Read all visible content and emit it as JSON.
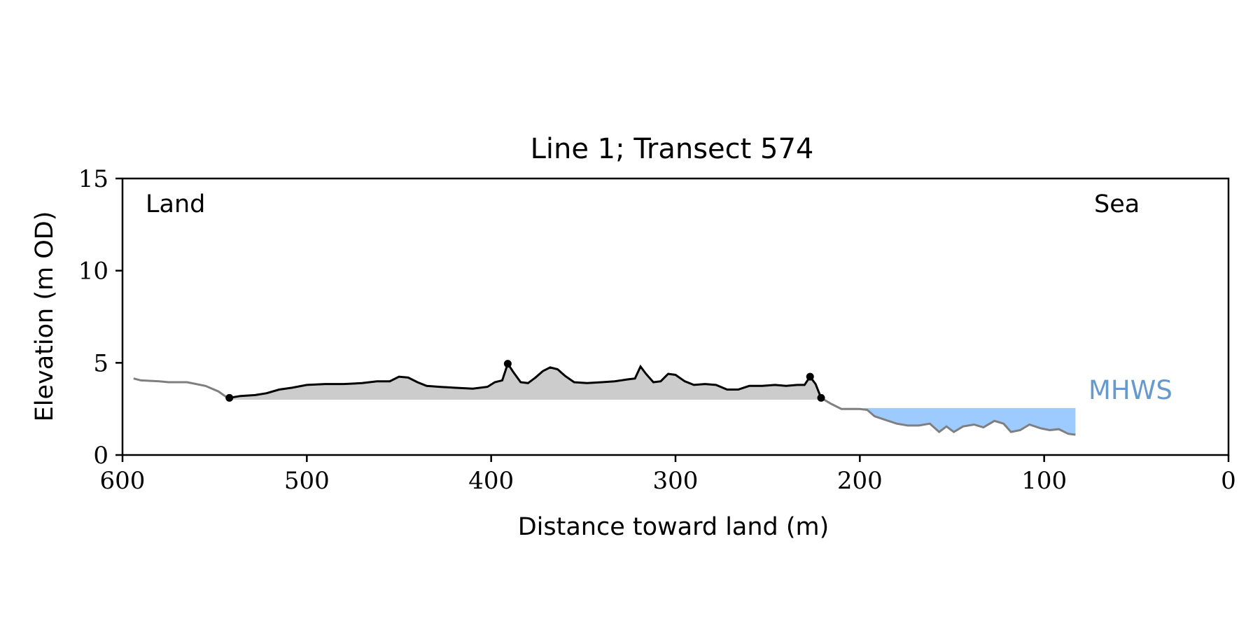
{
  "chart_data": {
    "type": "area",
    "title": "Line 1; Transect 574",
    "xlabel": "Distance toward land (m)",
    "ylabel": "Elevation (m OD)",
    "xlim": [
      600,
      0
    ],
    "ylim": [
      0,
      15
    ],
    "x_ticks": [
      600,
      500,
      400,
      300,
      200,
      100,
      0
    ],
    "y_ticks": [
      0,
      5,
      10,
      15
    ],
    "annotations": {
      "land": "Land",
      "sea": "Sea",
      "mhws": "MHWS"
    },
    "mhws_level": 2.55,
    "baseline_level": 3.0,
    "colors": {
      "profile": "#000000",
      "outer_profile": "#7f7f7f",
      "fill": "#cccccc",
      "water": "#9ecbff",
      "mhws_label": "#6699cc"
    },
    "outer_profile_land": [
      [
        594,
        4.15
      ],
      [
        590,
        4.05
      ],
      [
        580,
        4.0
      ],
      [
        575,
        3.95
      ],
      [
        565,
        3.95
      ],
      [
        555,
        3.75
      ],
      [
        548,
        3.45
      ],
      [
        543,
        3.1
      ]
    ],
    "profile": [
      [
        542,
        3.1
      ],
      [
        536,
        3.2
      ],
      [
        528,
        3.25
      ],
      [
        522,
        3.35
      ],
      [
        515,
        3.55
      ],
      [
        508,
        3.65
      ],
      [
        500,
        3.8
      ],
      [
        490,
        3.85
      ],
      [
        480,
        3.85
      ],
      [
        470,
        3.9
      ],
      [
        462,
        4.0
      ],
      [
        455,
        4.0
      ],
      [
        450,
        4.25
      ],
      [
        445,
        4.2
      ],
      [
        440,
        3.95
      ],
      [
        435,
        3.75
      ],
      [
        428,
        3.7
      ],
      [
        420,
        3.65
      ],
      [
        410,
        3.6
      ],
      [
        402,
        3.7
      ],
      [
        398,
        3.95
      ],
      [
        394,
        4.05
      ],
      [
        391,
        4.95
      ],
      [
        388,
        4.5
      ],
      [
        384,
        3.95
      ],
      [
        380,
        3.9
      ],
      [
        376,
        4.2
      ],
      [
        372,
        4.55
      ],
      [
        368,
        4.75
      ],
      [
        364,
        4.65
      ],
      [
        360,
        4.3
      ],
      [
        355,
        3.95
      ],
      [
        348,
        3.9
      ],
      [
        340,
        3.95
      ],
      [
        333,
        4.0
      ],
      [
        326,
        4.1
      ],
      [
        322,
        4.15
      ],
      [
        319,
        4.8
      ],
      [
        316,
        4.4
      ],
      [
        312,
        3.95
      ],
      [
        308,
        4.0
      ],
      [
        304,
        4.4
      ],
      [
        300,
        4.35
      ],
      [
        295,
        4.0
      ],
      [
        290,
        3.8
      ],
      [
        284,
        3.85
      ],
      [
        278,
        3.8
      ],
      [
        272,
        3.55
      ],
      [
        266,
        3.55
      ],
      [
        260,
        3.75
      ],
      [
        253,
        3.75
      ],
      [
        246,
        3.8
      ],
      [
        240,
        3.75
      ],
      [
        234,
        3.8
      ],
      [
        230,
        3.8
      ],
      [
        227,
        4.25
      ],
      [
        224,
        3.85
      ],
      [
        221,
        3.1
      ]
    ],
    "outer_profile_sea": [
      [
        221,
        3.1
      ],
      [
        216,
        2.8
      ],
      [
        210,
        2.5
      ],
      [
        200,
        2.5
      ],
      [
        196,
        2.45
      ],
      [
        192,
        2.1
      ],
      [
        186,
        1.9
      ],
      [
        180,
        1.7
      ],
      [
        174,
        1.6
      ],
      [
        168,
        1.6
      ],
      [
        162,
        1.7
      ],
      [
        157,
        1.25
      ],
      [
        153,
        1.55
      ],
      [
        149,
        1.25
      ],
      [
        144,
        1.55
      ],
      [
        138,
        1.65
      ],
      [
        133,
        1.5
      ],
      [
        127,
        1.85
      ],
      [
        122,
        1.7
      ],
      [
        118,
        1.25
      ],
      [
        113,
        1.35
      ],
      [
        108,
        1.65
      ],
      [
        102,
        1.45
      ],
      [
        97,
        1.35
      ],
      [
        92,
        1.4
      ],
      [
        87,
        1.15
      ],
      [
        83,
        1.1
      ]
    ],
    "water": [
      [
        198,
        2.55
      ],
      [
        196,
        2.45
      ],
      [
        192,
        2.1
      ],
      [
        186,
        1.9
      ],
      [
        180,
        1.7
      ],
      [
        174,
        1.6
      ],
      [
        168,
        1.6
      ],
      [
        162,
        1.7
      ],
      [
        157,
        1.25
      ],
      [
        153,
        1.55
      ],
      [
        149,
        1.25
      ],
      [
        144,
        1.55
      ],
      [
        138,
        1.65
      ],
      [
        133,
        1.5
      ],
      [
        127,
        1.85
      ],
      [
        122,
        1.7
      ],
      [
        118,
        1.25
      ],
      [
        113,
        1.35
      ],
      [
        108,
        1.65
      ],
      [
        102,
        1.45
      ],
      [
        97,
        1.35
      ],
      [
        92,
        1.4
      ],
      [
        87,
        1.15
      ],
      [
        83,
        1.1
      ]
    ],
    "markers": [
      [
        542,
        3.1
      ],
      [
        391,
        4.95
      ],
      [
        227,
        4.25
      ],
      [
        221,
        3.1
      ]
    ]
  }
}
